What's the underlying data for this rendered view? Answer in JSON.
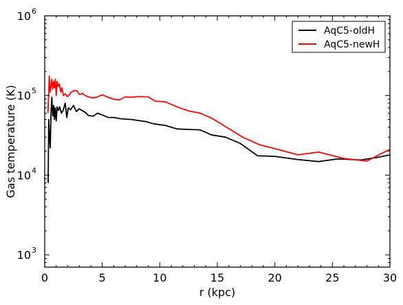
{
  "chart_data": {
    "type": "line",
    "xlabel": "r (kpc)",
    "ylabel": "Gas temperature (K)",
    "xlim": [
      0,
      30
    ],
    "ylim": [
      700,
      1000000
    ],
    "yscale": "log",
    "grid": false,
    "legend_position": "top-right",
    "x_ticks": [
      0,
      5,
      10,
      15,
      20,
      25,
      30
    ],
    "x_tick_labels": [
      "0",
      "5",
      "10",
      "15",
      "20",
      "25",
      "30"
    ],
    "y_ticks": [
      1000,
      10000,
      100000,
      1000000
    ],
    "y_tick_labels": [
      {
        "base": "10",
        "exp": "3"
      },
      {
        "base": "10",
        "exp": "4"
      },
      {
        "base": "10",
        "exp": "5"
      },
      {
        "base": "10",
        "exp": "6"
      }
    ],
    "series": [
      {
        "name": "AqC5-oldH",
        "color": "#000000",
        "points": [
          [
            0.3,
            8000
          ],
          [
            0.35,
            50000
          ],
          [
            0.42,
            30000
          ],
          [
            0.48,
            22000
          ],
          [
            0.55,
            60000
          ],
          [
            0.62,
            95000
          ],
          [
            0.7,
            55000
          ],
          [
            0.78,
            75000
          ],
          [
            0.85,
            50000
          ],
          [
            0.92,
            70000
          ],
          [
            1.0,
            48000
          ],
          [
            1.08,
            72000
          ],
          [
            1.18,
            65000
          ],
          [
            1.3,
            72000
          ],
          [
            1.45,
            60000
          ],
          [
            1.6,
            65000
          ],
          [
            1.78,
            80000
          ],
          [
            1.92,
            53000
          ],
          [
            2.05,
            70000
          ],
          [
            2.25,
            66000
          ],
          [
            2.5,
            75000
          ],
          [
            2.75,
            63000
          ],
          [
            3.0,
            68000
          ],
          [
            3.4,
            63000
          ],
          [
            3.6,
            60000
          ],
          [
            3.8,
            56000
          ],
          [
            4.2,
            55000
          ],
          [
            4.6,
            60000
          ],
          [
            5.0,
            57000
          ],
          [
            5.5,
            53000
          ],
          [
            6.0,
            53000
          ],
          [
            6.6,
            51000
          ],
          [
            7.5,
            50000
          ],
          [
            8.8,
            47000
          ],
          [
            9.5,
            44000
          ],
          [
            10.5,
            42000
          ],
          [
            11.5,
            38000
          ],
          [
            12.5,
            37500
          ],
          [
            13.5,
            37000
          ],
          [
            14.5,
            32000
          ],
          [
            15.7,
            30000
          ],
          [
            17.0,
            25000
          ],
          [
            18.5,
            17500
          ],
          [
            20.0,
            17200
          ],
          [
            22.0,
            15700
          ],
          [
            23.8,
            14800
          ],
          [
            25.5,
            16000
          ],
          [
            27.5,
            15500
          ],
          [
            29.0,
            16800
          ],
          [
            30.0,
            18000
          ]
        ]
      },
      {
        "name": "AqC5-newH",
        "color": "#ff0000",
        "points": [
          [
            0.28,
            60000
          ],
          [
            0.34,
            100000
          ],
          [
            0.4,
            175000
          ],
          [
            0.48,
            110000
          ],
          [
            0.55,
            130000
          ],
          [
            0.62,
            160000
          ],
          [
            0.7,
            120000
          ],
          [
            0.78,
            150000
          ],
          [
            0.85,
            125000
          ],
          [
            0.92,
            160000
          ],
          [
            1.0,
            100000
          ],
          [
            1.08,
            150000
          ],
          [
            1.18,
            130000
          ],
          [
            1.28,
            140000
          ],
          [
            1.4,
            110000
          ],
          [
            1.5,
            125000
          ],
          [
            1.62,
            100000
          ],
          [
            1.8,
            105000
          ],
          [
            1.95,
            97000
          ],
          [
            2.1,
            100000
          ],
          [
            2.3,
            110000
          ],
          [
            2.55,
            115000
          ],
          [
            2.8,
            115000
          ],
          [
            3.0,
            103000
          ],
          [
            3.3,
            106000
          ],
          [
            3.5,
            100000
          ],
          [
            3.8,
            96000
          ],
          [
            4.2,
            93000
          ],
          [
            4.6,
            96000
          ],
          [
            5.0,
            102000
          ],
          [
            5.5,
            95000
          ],
          [
            6.0,
            90000
          ],
          [
            6.5,
            88000
          ],
          [
            7.0,
            96000
          ],
          [
            7.5,
            95000
          ],
          [
            8.2,
            97000
          ],
          [
            9.0,
            96000
          ],
          [
            9.6,
            85000
          ],
          [
            10.5,
            83000
          ],
          [
            11.5,
            72000
          ],
          [
            12.5,
            64000
          ],
          [
            13.5,
            60000
          ],
          [
            14.5,
            52000
          ],
          [
            15.8,
            40000
          ],
          [
            17.2,
            30000
          ],
          [
            18.7,
            24000
          ],
          [
            20.3,
            21000
          ],
          [
            22.0,
            18000
          ],
          [
            23.8,
            19500
          ],
          [
            26.0,
            16200
          ],
          [
            28.0,
            15000
          ],
          [
            29.2,
            18500
          ],
          [
            30.0,
            21000
          ]
        ]
      }
    ]
  }
}
